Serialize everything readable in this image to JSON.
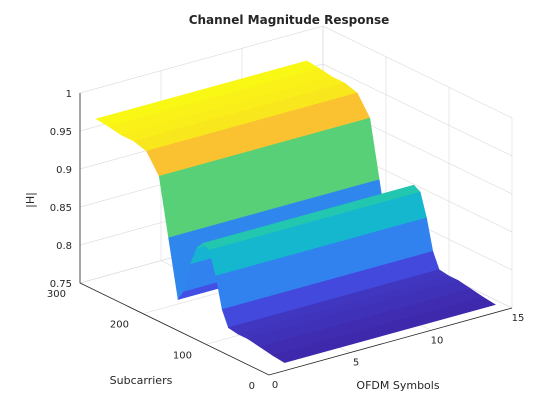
{
  "chart_data": {
    "type": "surface",
    "title": "Channel Magnitude Response",
    "xlabel": "OFDM Symbols",
    "ylabel": "Subcarriers",
    "zlabel": "|H|",
    "xlim": [
      0,
      15
    ],
    "ylim": [
      0,
      300
    ],
    "zlim": [
      0.75,
      1
    ],
    "x_ticks": [
      "0",
      "5",
      "10",
      "15"
    ],
    "y_ticks": [
      "0",
      "100",
      "200",
      "300"
    ],
    "z_ticks": [
      "0.75",
      "0.8",
      "0.85",
      "0.9",
      "0.95",
      "1"
    ],
    "grid": true,
    "colormap": "parula",
    "x_range_data": [
      1,
      14
    ],
    "y_range_data": [
      1,
      300
    ],
    "note_shape": "surface is constant along OFDM symbols",
    "subcarrier_profile": {
      "subcarrier": [
        1,
        20,
        40,
        60,
        75,
        90,
        100,
        110,
        120,
        130,
        140,
        150,
        160,
        170,
        185,
        200,
        220,
        240,
        260,
        280,
        300
      ],
      "magnitude": [
        0.76,
        0.762,
        0.765,
        0.768,
        0.768,
        0.77,
        0.79,
        0.83,
        0.86,
        0.865,
        0.855,
        0.83,
        0.79,
        0.775,
        0.85,
        0.925,
        0.95,
        0.955,
        0.955,
        0.958,
        0.96
      ]
    }
  }
}
